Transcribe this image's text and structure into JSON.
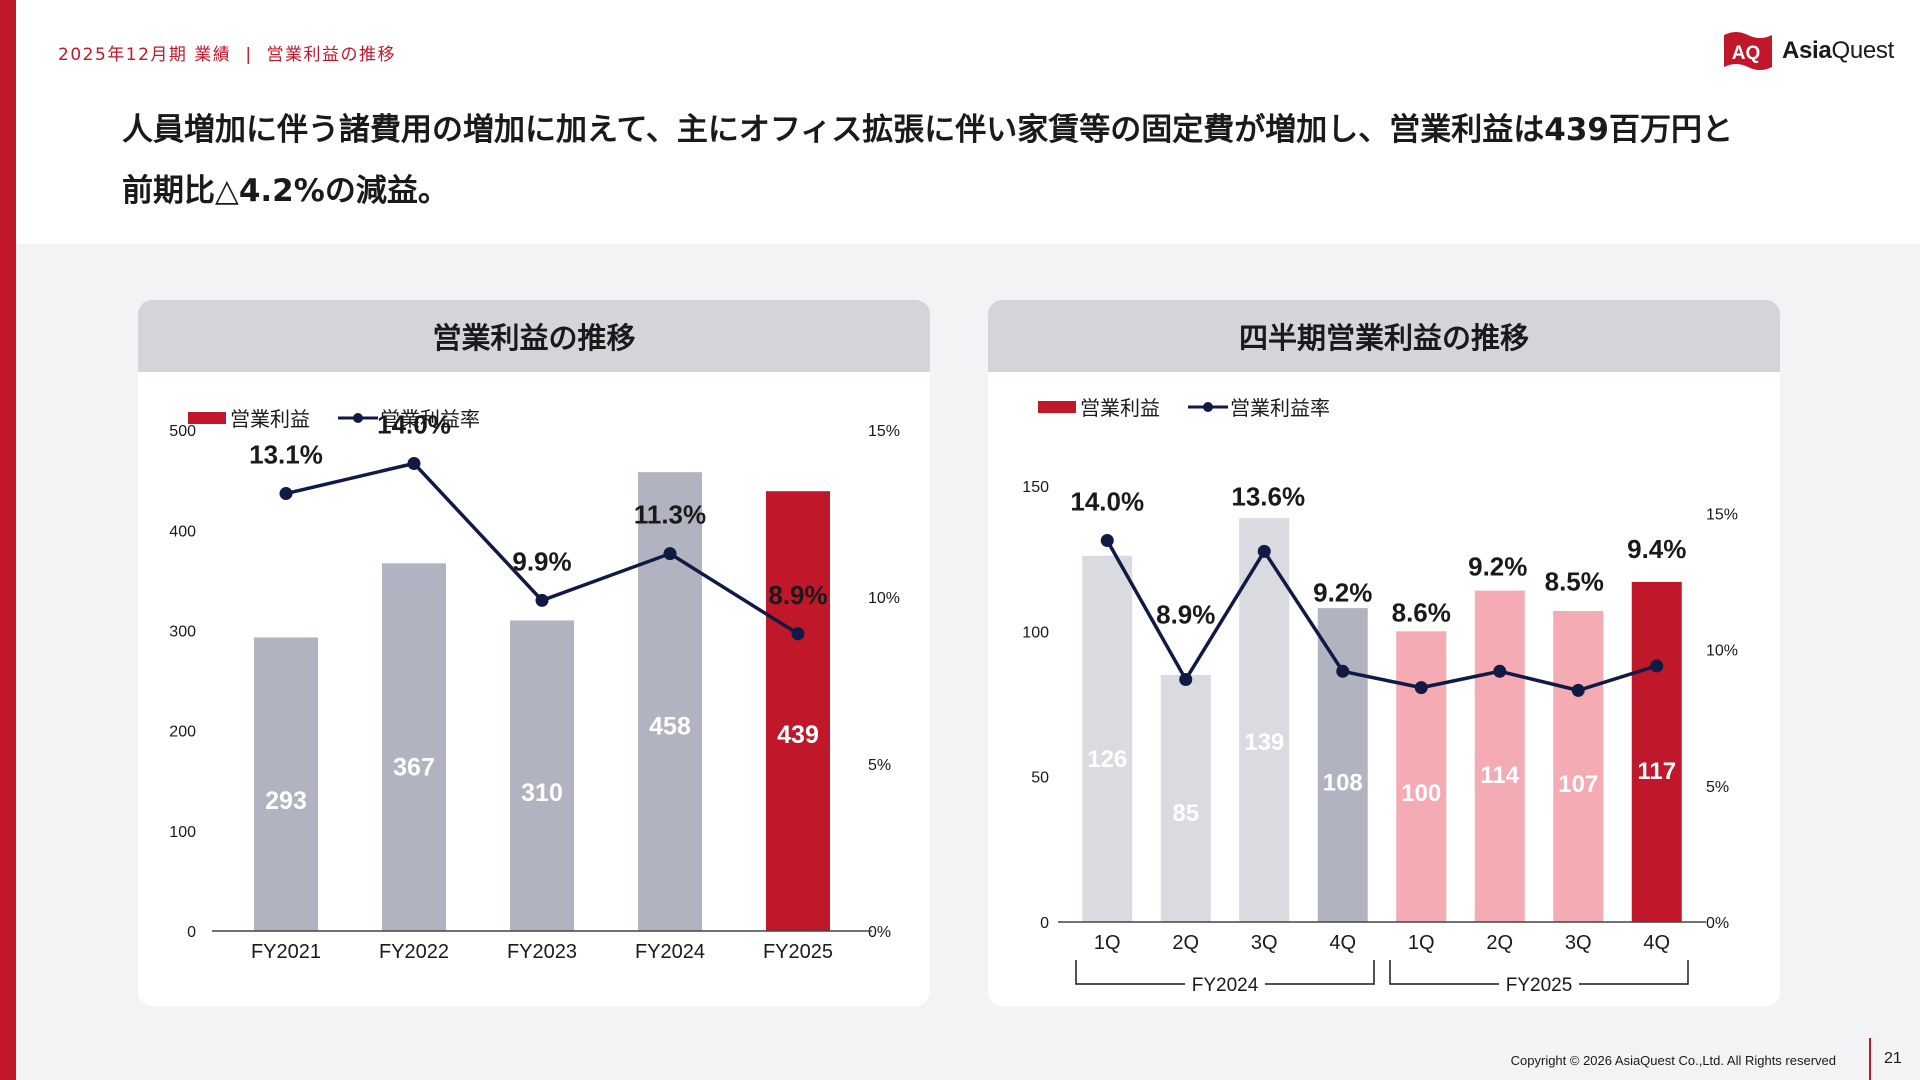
{
  "header": {
    "breadcrumb_period": "2025年12月期 業績",
    "breadcrumb_page": "営業利益の推移",
    "logo_text_bold": "Asia",
    "logo_text_rest": "Quest",
    "logo_flag_text": "AQ"
  },
  "headline": {
    "line1": "人員増加に伴う諸費用の増加に加えて、主にオフィス拡張に伴い家賃等の固定費が増加し、営業利益は439百万円と",
    "line2": "前期比△4.2%の減益。"
  },
  "colors": {
    "accent_red": "#c0172a",
    "bar_gray": "#b1b3c0",
    "bar_light_gray": "#dadbe0",
    "bar_pink": "#f5abb3",
    "line_navy": "#111a44"
  },
  "chart_data": [
    {
      "type": "bar",
      "title": "営業利益の推移",
      "legend": [
        "営業利益",
        "営業利益率"
      ],
      "legend_placement": "top-left",
      "categories": [
        "FY2021",
        "FY2022",
        "FY2023",
        "FY2024",
        "FY2025"
      ],
      "series": [
        {
          "name": "営業利益",
          "type": "bar",
          "values": [
            293,
            367,
            310,
            458,
            439
          ],
          "labels": [
            "293",
            "367",
            "310",
            "458",
            "439"
          ]
        },
        {
          "name": "営業利益率",
          "type": "line",
          "axis": "right",
          "values": [
            13.1,
            14.0,
            9.9,
            11.3,
            8.9
          ],
          "labels": [
            "13.1%",
            "14.0%",
            "9.9%",
            "11.3%",
            "8.9%"
          ]
        }
      ],
      "ylim": [
        0,
        550
      ],
      "yticks": [
        0,
        100,
        200,
        300,
        400,
        500
      ],
      "ytick_labels": [
        "0",
        "100",
        "200",
        "300",
        "400",
        "500"
      ],
      "y2lim": [
        0,
        16.5
      ],
      "y2ticks": [
        0,
        5,
        10,
        15
      ],
      "y2tick_labels": [
        "0%",
        "5%",
        "10%",
        "15%"
      ],
      "grid": false
    },
    {
      "type": "bar",
      "title": "四半期営業利益の推移",
      "legend": [
        "営業利益",
        "営業利益率"
      ],
      "legend_placement": "top-left",
      "categories": [
        "1Q",
        "2Q",
        "3Q",
        "4Q",
        "1Q",
        "2Q",
        "3Q",
        "4Q"
      ],
      "groups": [
        {
          "label": "FY2024",
          "start": 0,
          "end": 3
        },
        {
          "label": "FY2025",
          "start": 4,
          "end": 7
        }
      ],
      "series": [
        {
          "name": "営業利益",
          "type": "bar",
          "values": [
            126,
            85,
            139,
            108,
            100,
            114,
            107,
            117
          ],
          "labels": [
            "126",
            "85",
            "139",
            "108",
            "100",
            "114",
            "107",
            "117"
          ]
        },
        {
          "name": "営業利益率",
          "type": "line",
          "axis": "right",
          "values": [
            14.0,
            8.9,
            13.6,
            9.2,
            8.6,
            9.2,
            8.5,
            9.4
          ],
          "labels": [
            "14.0%",
            "8.9%",
            "13.6%",
            "9.2%",
            "8.6%",
            "9.2%",
            "8.5%",
            "9.4%"
          ]
        }
      ],
      "ylim": [
        0,
        150
      ],
      "yticks": [
        0,
        50,
        100,
        150
      ],
      "ytick_labels": [
        "0",
        "50",
        "100",
        "150"
      ],
      "y2lim": [
        0,
        16
      ],
      "y2ticks": [
        0,
        5,
        10,
        15
      ],
      "y2tick_labels": [
        "0%",
        "5%",
        "10%",
        "15%"
      ],
      "grid": false
    }
  ],
  "footer": {
    "copyright": "Copyright © 2026 AsiaQuest Co.,Ltd. All Rights reserved",
    "page_number": "21"
  }
}
